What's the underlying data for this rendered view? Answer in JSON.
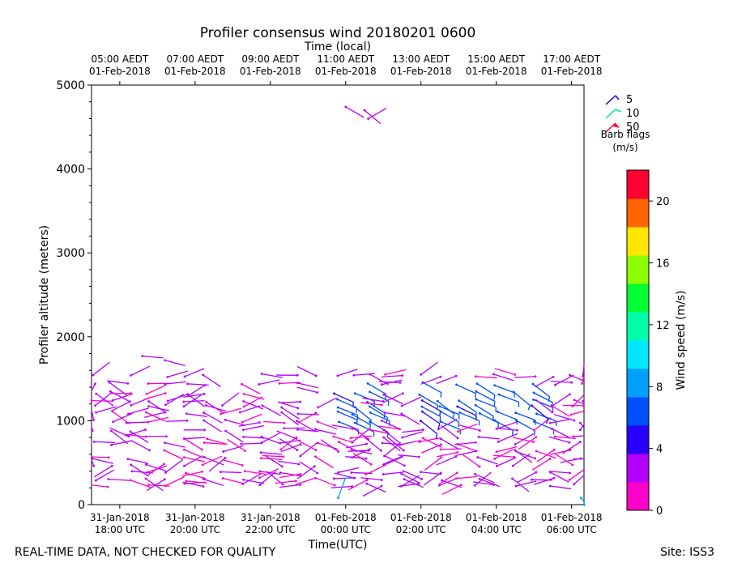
{
  "chart_data": {
    "type": "wind-barb-scatter",
    "title": "Profiler consensus wind 20180201 0600",
    "xlabel": "Time(UTC)",
    "top_xlabel": "Time (local)",
    "ylabel": "Profiler altitude (meters)",
    "ylim": [
      0,
      5000
    ],
    "xlim_hours_utc": [
      "2018-01-31 17:15",
      "2018-02-01 06:20"
    ],
    "yticks": [
      0,
      1000,
      2000,
      3000,
      4000,
      5000
    ],
    "xticks": [
      {
        "line1": "31-Jan-2018",
        "line2": "18:00 UTC",
        "hour": 18
      },
      {
        "line1": "31-Jan-2018",
        "line2": "20:00 UTC",
        "hour": 20
      },
      {
        "line1": "31-Jan-2018",
        "line2": "22:00 UTC",
        "hour": 22
      },
      {
        "line1": "01-Feb-2018",
        "line2": "00:00 UTC",
        "hour": 24
      },
      {
        "line1": "01-Feb-2018",
        "line2": "02:00 UTC",
        "hour": 26
      },
      {
        "line1": "01-Feb-2018",
        "line2": "04:00 UTC",
        "hour": 28
      },
      {
        "line1": "01-Feb-2018",
        "line2": "06:00 UTC",
        "hour": 30
      }
    ],
    "top_xticks": [
      {
        "line1": "05:00 AEDT",
        "line2": "01-Feb-2018",
        "hour": 18
      },
      {
        "line1": "07:00 AEDT",
        "line2": "01-Feb-2018",
        "hour": 20
      },
      {
        "line1": "09:00 AEDT",
        "line2": "01-Feb-2018",
        "hour": 22
      },
      {
        "line1": "11:00 AEDT",
        "line2": "01-Feb-2018",
        "hour": 24
      },
      {
        "line1": "13:00 AEDT",
        "line2": "01-Feb-2018",
        "hour": 26
      },
      {
        "line1": "15:00 AEDT",
        "line2": "01-Feb-2018",
        "hour": 28
      },
      {
        "line1": "17:00 AEDT",
        "line2": "01-Feb-2018",
        "hour": 30
      }
    ],
    "barb_legend": {
      "items": [
        {
          "label": "5",
          "color": "#1a00ff"
        },
        {
          "label": "10",
          "color": "#00e68c"
        },
        {
          "label": "50",
          "color": "#ff0033"
        }
      ],
      "title_line1": "Barb flags",
      "title_line2": "(m/s)"
    },
    "colorbar": {
      "label": "Wind speed (m/s)",
      "range": [
        0,
        22
      ],
      "ticks": [
        0,
        4,
        8,
        12,
        16,
        20
      ],
      "colors": [
        "#ff00c8",
        "#b400ff",
        "#2800ff",
        "#0050ff",
        "#00a0ff",
        "#00e6ff",
        "#00ffaa",
        "#00ff32",
        "#8cff00",
        "#ffe600",
        "#ff6400",
        "#ff0032"
      ]
    },
    "wind_observations": {
      "levels_m": [
        230,
        300,
        380,
        470,
        560,
        640,
        730,
        800,
        890,
        990,
        1090,
        1170,
        1240,
        1330,
        1440,
        1540
      ],
      "times_hour": [
        17.3,
        17.75,
        18.25,
        18.75,
        19.25,
        19.75,
        20.25,
        20.75,
        21.25,
        21.75,
        22.3,
        22.75,
        23.25,
        23.75,
        24.2,
        24.6,
        25.0,
        25.5,
        26.0,
        26.5,
        27.0,
        27.5,
        28.0,
        28.5,
        29.0,
        29.5,
        30.0,
        30.3
      ],
      "notes": "Mostly light (0-4 m/s) winds below ~1600 m; isolated higher obs near 1750 m at 18:30-19:30 UTC and near 4600-4750 m at 24:00-25:00 UTC; 5-10 m/s barbs near 1000-1450 m around 23:30-24:30 UTC and 26:00-29:00 UTC."
    }
  },
  "footer": {
    "left": "REAL-TIME DATA, NOT CHECKED FOR QUALITY",
    "right": "Site: ISS3"
  }
}
